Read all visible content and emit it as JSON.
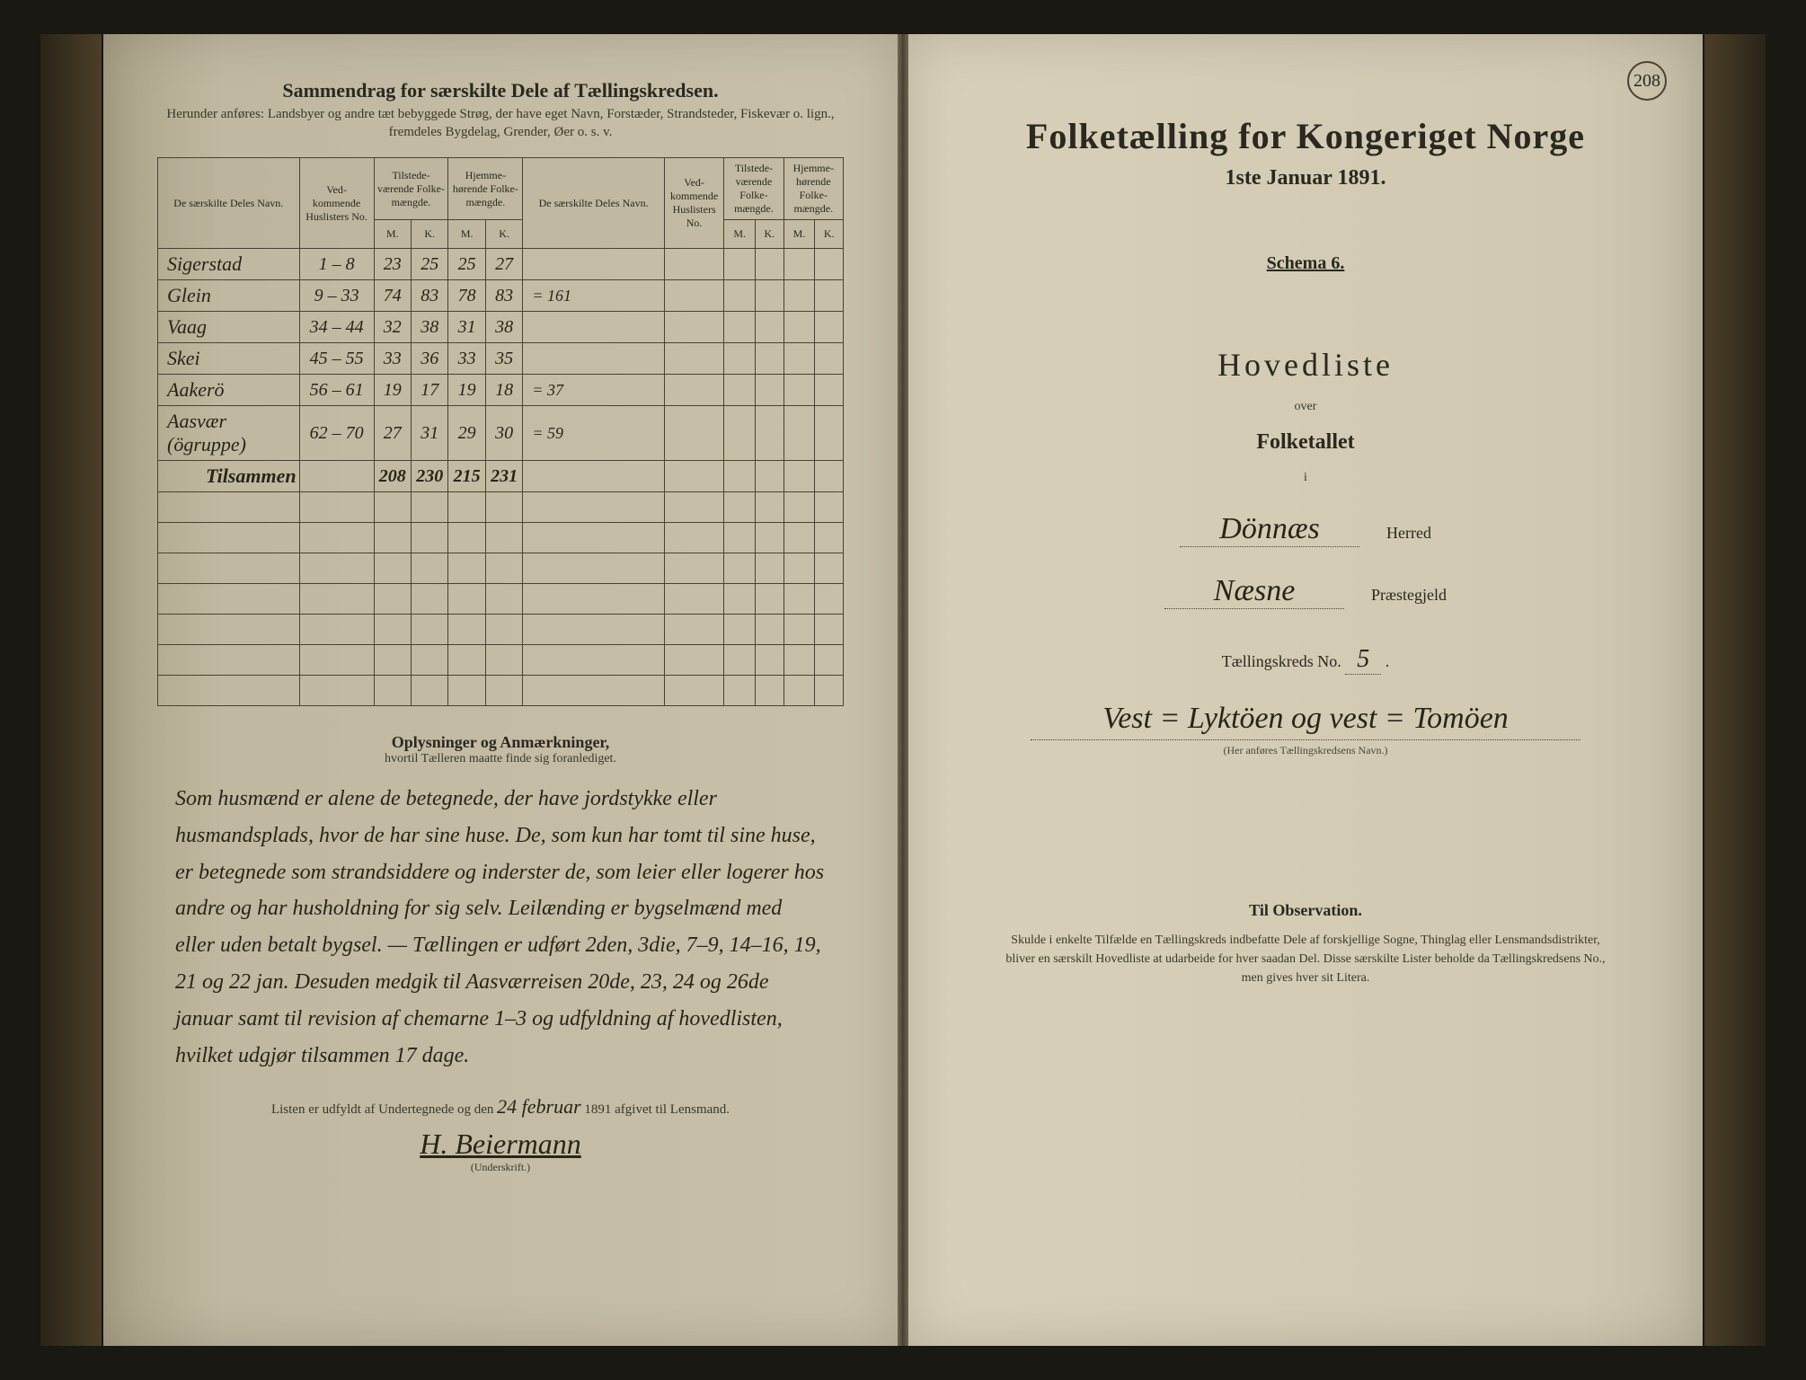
{
  "left": {
    "title": "Sammendrag for særskilte Dele af Tællingskredsen.",
    "subtitle": "Herunder anføres: Landsbyer og andre tæt bebyggede Strøg, der have eget Navn, Forstæder, Strandsteder, Fiskevær o. lign., fremdeles Bygdelag, Grender, Øer o. s. v.",
    "headers": {
      "name1": "De særskilte Deles Navn.",
      "husl": "Ved-kommende Huslisters No.",
      "tilstede": "Tilstede-værende Folke-mængde.",
      "hjemme": "Hjemme-hørende Folke-mængde.",
      "name2": "De særskilte Deles Navn.",
      "mk": "M.  K."
    },
    "rows": [
      {
        "name": "Sigerstad",
        "range": "1 – 8",
        "tm": "23",
        "tk": "25",
        "hm": "25",
        "hk": "27",
        "note": ""
      },
      {
        "name": "Glein",
        "range": "9 – 33",
        "tm": "74",
        "tk": "83",
        "hm": "78",
        "hk": "83",
        "note": "= 161"
      },
      {
        "name": "Vaag",
        "range": "34 – 44",
        "tm": "32",
        "tk": "38",
        "hm": "31",
        "hk": "38",
        "note": ""
      },
      {
        "name": "Skei",
        "range": "45 – 55",
        "tm": "33",
        "tk": "36",
        "hm": "33",
        "hk": "35",
        "note": ""
      },
      {
        "name": "Aakerö",
        "range": "56 – 61",
        "tm": "19",
        "tk": "17",
        "hm": "19",
        "hk": "18",
        "note": "= 37"
      },
      {
        "name": "Aasvær (ögruppe)",
        "range": "62 – 70",
        "tm": "27",
        "tk": "31",
        "hm": "29",
        "hk": "30",
        "note": "= 59"
      }
    ],
    "sum": {
      "label": "Tilsammen",
      "tm": "208",
      "tk": "230",
      "hm": "215",
      "hk": "231"
    },
    "notes_title": "Oplysninger og Anmærkninger,",
    "notes_sub": "hvortil Tælleren maatte finde sig foranlediget.",
    "notes_body": "Som husmænd er alene de betegnede, der have jordstykke eller husmandsplads, hvor de har sine huse. De, som kun har tomt til sine huse, er betegnede som strandsiddere og inderster de, som leier eller logerer hos andre og har husholdning for sig selv. Leilænding er bygselmænd med eller uden betalt bygsel. — Tællingen er udført 2den, 3die, 7–9, 14–16, 19, 21 og 22 jan. Desuden medgik til Aasværreisen 20de, 23, 24 og 26de januar samt til revision af chemarne 1–3 og udfyldning af hovedlisten, hvilket udgjør tilsammen 17 dage.",
    "sig_line_pre": "Listen er udfyldt af Undertegnede og den",
    "sig_date": "24 februar",
    "sig_year": "1891 afgivet til Lensmand.",
    "signature": "H. Beiermann",
    "sig_label": "(Underskrift.)"
  },
  "right": {
    "page_no": "208",
    "title": "Folketælling for Kongeriget Norge",
    "date": "1ste Januar 1891.",
    "schema": "Schema 6.",
    "hovedliste": "Hovedliste",
    "over": "over",
    "folketallet": "Folketallet",
    "i": "i",
    "herred_val": "Dönnæs",
    "herred_lbl": "Herred",
    "praeste_val": "Næsne",
    "praeste_lbl": "Præstegjeld",
    "kreds_lbl": "Tællingskreds No.",
    "kreds_no": "5",
    "kreds_name": "Vest = Lyktöen og vest = Tomöen",
    "kreds_hint": "(Her anføres Tællingskredsens Navn.)",
    "obs_title": "Til Observation.",
    "obs_body": "Skulde i enkelte Tilfælde en Tællingskreds indbefatte Dele af forskjellige Sogne, Thinglag eller Lensmandsdistrikter, bliver en særskilt Hovedliste at udarbeide for hver saadan Del. Disse særskilte Lister beholde da Tællingskredsens No., men gives hver sit Litera."
  }
}
